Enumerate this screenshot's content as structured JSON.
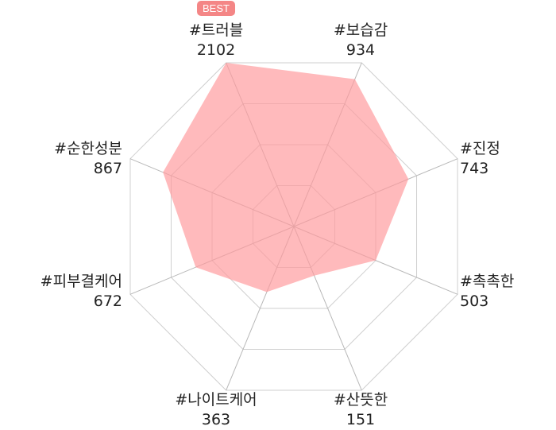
{
  "colors": {
    "fill": "#ff9a9c",
    "grid": "#cfcfcf",
    "spoke": "#b8b8b8",
    "badge": "#f48686"
  },
  "badge": "BEST",
  "chart_data": {
    "type": "radar",
    "categories": [
      "#트러블",
      "#보습감",
      "#진정",
      "#촉촉한",
      "#산뜻한",
      "#나이트케어",
      "#피부결케어",
      "#순한성분"
    ],
    "values": [
      2102,
      934,
      743,
      503,
      151,
      363,
      672,
      867
    ],
    "value_labels": [
      "2102",
      "934",
      "743",
      "503",
      "151",
      "363",
      "672",
      "867"
    ],
    "grid_levels": 4
  }
}
